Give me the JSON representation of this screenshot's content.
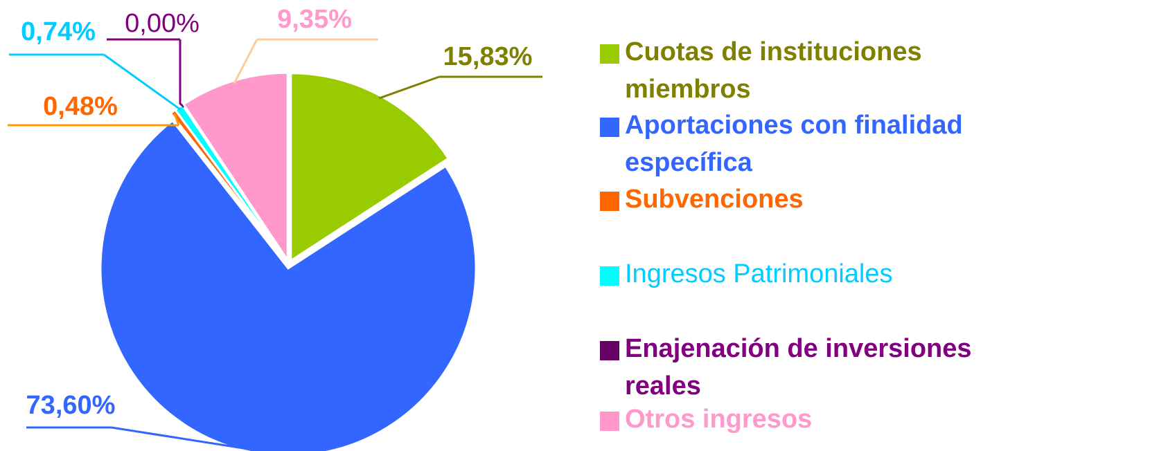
{
  "chart_data": {
    "type": "pie",
    "categories": [
      "Cuotas de instituciones miembros",
      "Aportaciones con finalidad específica",
      "Subvenciones",
      "Ingresos Patrimoniales",
      "Enajenación de inversiones reales",
      "Otros ingresos"
    ],
    "values": [
      15.83,
      73.6,
      0.48,
      0.74,
      0.0,
      9.35
    ],
    "value_labels": [
      "15,83%",
      "73,60%",
      "0,48%",
      "0,74%",
      "0,00%",
      "9,35%"
    ],
    "colors": [
      "#99cc00",
      "#3366ff",
      "#ff6600",
      "#00ffff",
      "#660066",
      "#ff99cc"
    ],
    "label_colors": [
      "#808000",
      "#3366ff",
      "#ff6600",
      "#00ccff",
      "#800080",
      "#ff99cc"
    ],
    "label_weights": [
      "bold",
      "bold",
      "bold",
      "normal",
      "bold",
      "bold"
    ],
    "legend_position": "right"
  }
}
